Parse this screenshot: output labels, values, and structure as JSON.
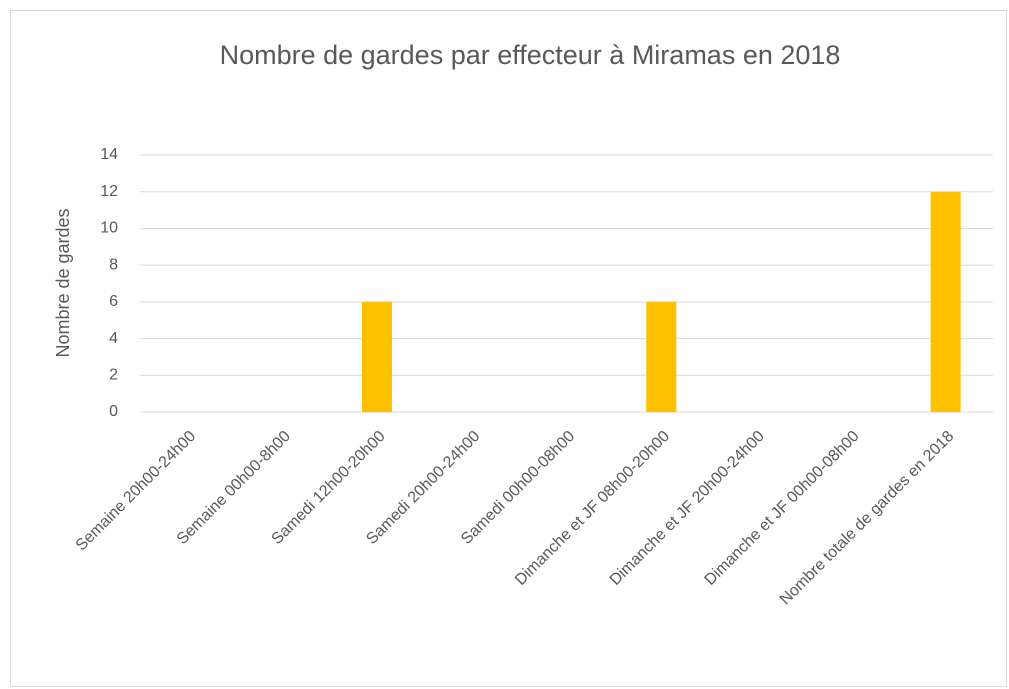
{
  "chart_data": {
    "type": "bar",
    "title": "Nombre de gardes par effecteur à Miramas en 2018",
    "y_axis_label": "Nombre de gardes",
    "categories": [
      "Semaine 20h00-24h00",
      "Semaine 00h00-8h00",
      "Samedi 12h00-20h00",
      "Samedi 20h00-24h00",
      "Samedi 00h00-08h00",
      "Dimanche et JF 08h00-20h00",
      "Dimanche et JF 20h00-24h00",
      "Dimanche et JF 00h00-08h00",
      "Nombre totale de gardes en 2018"
    ],
    "values": [
      0,
      0,
      6,
      0,
      0,
      6,
      0,
      0,
      12
    ],
    "color": "#ffc000",
    "ylim": [
      0,
      14
    ],
    "yticks": [
      0,
      2,
      4,
      6,
      8,
      10,
      12,
      14
    ],
    "grid": true
  }
}
